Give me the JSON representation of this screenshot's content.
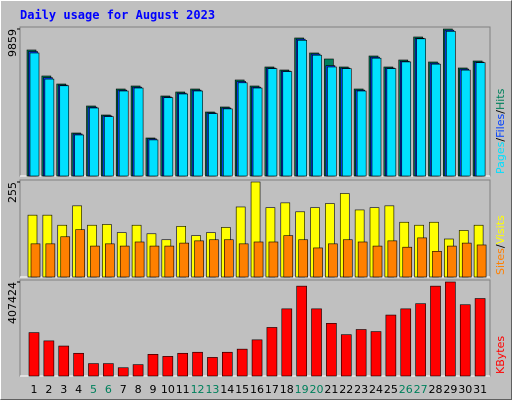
{
  "title": "Daily usage for August 2023",
  "legend_separator": "/",
  "chart_data": [
    {
      "type": "bar",
      "ylim": [
        0,
        9859
      ],
      "yticks": [
        9859
      ],
      "series": [
        {
          "name": "Hits",
          "color": "#00805c",
          "values": [
            8451,
            6707,
            6170,
            2884,
            4695,
            4091,
            5835,
            6036,
            2549,
            5366,
            5634,
            5835,
            4292,
            4628,
            6439,
            6036,
            7311,
            7109,
            9256,
            8250,
            7847,
            7311,
            5835,
            8048,
            7311,
            7780,
            9323,
            7646,
            9859,
            7244,
            7713
          ]
        },
        {
          "name": "Files",
          "color": "#0040ff",
          "values": [
            8350,
            6600,
            6100,
            2820,
            4620,
            4030,
            5760,
            5960,
            2490,
            5300,
            5560,
            5760,
            4230,
            4560,
            6340,
            5960,
            7240,
            7040,
            9180,
            8180,
            7400,
            7240,
            5760,
            7970,
            7240,
            7700,
            9240,
            7570,
            9780,
            7170,
            7640
          ]
        },
        {
          "name": "Pages",
          "color": "#00e0ff",
          "values": [
            8250,
            6500,
            6050,
            2750,
            4560,
            3980,
            5700,
            5900,
            2420,
            5250,
            5500,
            5700,
            4180,
            4500,
            6250,
            5900,
            7200,
            7000,
            9100,
            8100,
            7311,
            7200,
            5700,
            7900,
            7200,
            7650,
            9200,
            7500,
            9700,
            7100,
            7600
          ]
        }
      ]
    },
    {
      "type": "bar",
      "ylim": [
        0,
        255
      ],
      "yticks": [
        255
      ],
      "series": [
        {
          "name": "Visits",
          "color": "#ffff00",
          "values": [
            166,
            166,
            139,
            191,
            139,
            141,
            119,
            139,
            116,
            100,
            136,
            111,
            119,
            133,
            188,
            255,
            186,
            199,
            175,
            186,
            197,
            224,
            180,
            186,
            191,
            147,
            139,
            147,
            102,
            125,
            139
          ]
        },
        {
          "name": "Sites",
          "color": "#ff8000",
          "values": [
            89,
            89,
            108,
            127,
            83,
            89,
            83,
            94,
            83,
            83,
            91,
            97,
            100,
            100,
            89,
            94,
            94,
            111,
            100,
            78,
            89,
            100,
            94,
            83,
            97,
            80,
            105,
            69,
            83,
            91,
            86
          ]
        }
      ]
    },
    {
      "type": "bar",
      "ylim": [
        0,
        407424
      ],
      "yticks": [
        407424
      ],
      "categories": [
        "1",
        "2",
        "3",
        "4",
        "5",
        "6",
        "7",
        "8",
        "9",
        "10",
        "11",
        "12",
        "13",
        "14",
        "15",
        "16",
        "17",
        "18",
        "19",
        "20",
        "21",
        "22",
        "23",
        "24",
        "25",
        "26",
        "27",
        "28",
        "29",
        "30",
        "31"
      ],
      "category_colors": [
        "#000000",
        "#000000",
        "#000000",
        "#000000",
        "#00805c",
        "#00805c",
        "#000000",
        "#000000",
        "#000000",
        "#000000",
        "#000000",
        "#00805c",
        "#00805c",
        "#000000",
        "#000000",
        "#000000",
        "#000000",
        "#000000",
        "#00805c",
        "#00805c",
        "#000000",
        "#000000",
        "#000000",
        "#000000",
        "#000000",
        "#00805c",
        "#00805c",
        "#000000",
        "#000000",
        "#000000",
        "#000000"
      ],
      "series": [
        {
          "name": "KBytes",
          "color": "#ff0000",
          "values": [
            188034,
            152218,
            129833,
            98494,
            53724,
            53724,
            35816,
            49247,
            94017,
            85063,
            98494,
            102971,
            80586,
            102971,
            116402,
            156695,
            210419,
            291005,
            389499,
            291005,
            228327,
            179080,
            201465,
            192511,
            264143,
            291005,
            313390,
            389499,
            407424,
            308913,
            335775
          ]
        }
      ]
    }
  ]
}
